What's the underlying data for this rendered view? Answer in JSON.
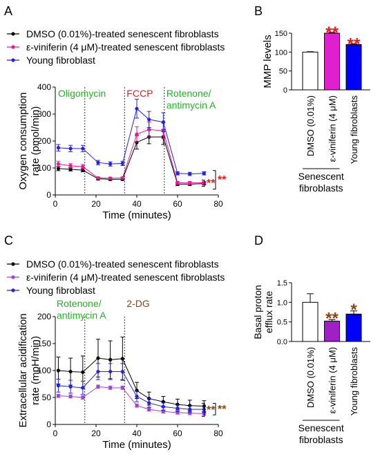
{
  "panels": {
    "a": "A",
    "b": "B",
    "c": "C",
    "d": "D"
  },
  "colors": {
    "dmso": "#000000",
    "vin_a": "#e8189a",
    "vin_c": "#a23fd6",
    "young": "#2222e0",
    "red": "#e8191b",
    "green": "#1db31d",
    "brown": "#8b4513"
  },
  "chart_data": [
    {
      "id": "A",
      "type": "line",
      "xlabel": "Time (minutes)",
      "ylabel": [
        "Oxygen consumption",
        "rate (pmol/min)"
      ],
      "xlim": [
        0,
        80
      ],
      "ylim": [
        0,
        400
      ],
      "xticks": [
        "0",
        "20",
        "40",
        "60",
        "80"
      ],
      "yticks": [
        "0",
        "100",
        "200",
        "300",
        "400"
      ],
      "x": [
        1.5,
        7.5,
        13.5,
        21,
        27,
        33,
        40,
        46,
        53,
        60,
        66,
        73
      ],
      "series": [
        {
          "name": "DMSO (0.01%)-treated senescent fibroblasts",
          "color": "#000000",
          "values": [
            98,
            95,
            92,
            60,
            58,
            58,
            195,
            215,
            215,
            40,
            40,
            42
          ],
          "err": [
            8,
            6,
            6,
            4,
            4,
            4,
            25,
            25,
            28,
            5,
            5,
            5
          ]
        },
        {
          "name": "ε-viniferin (4 μM)-treated senescent fibroblasts",
          "color": "#e8189a",
          "values": [
            115,
            108,
            105,
            63,
            62,
            63,
            225,
            243,
            238,
            45,
            45,
            45
          ],
          "err": [
            10,
            8,
            8,
            4,
            4,
            4,
            28,
            28,
            30,
            5,
            5,
            5
          ]
        },
        {
          "name": "Young fibroblast",
          "color": "#2222e0",
          "values": [
            175,
            172,
            172,
            120,
            115,
            117,
            320,
            280,
            270,
            80,
            78,
            80
          ],
          "err": [
            12,
            12,
            12,
            8,
            8,
            8,
            35,
            30,
            35,
            6,
            6,
            6
          ]
        }
      ],
      "injections": [
        {
          "label": "Oligomycin",
          "x": 14.5,
          "color": "#1db31d"
        },
        {
          "label": "FCCP",
          "x": 34,
          "color": "#e8191b"
        },
        {
          "label": "Rotenone/",
          "label2": "antimycin A",
          "x": 53.5,
          "color": "#1db31d"
        }
      ],
      "sig": [
        "**",
        "**"
      ]
    },
    {
      "id": "B",
      "type": "bar",
      "ylabel": "MMP levels",
      "ylim": [
        0,
        150
      ],
      "yticks": [
        "0",
        "50",
        "100",
        "150"
      ],
      "categories": [
        "DMSO (0.01%)",
        "ε-viniferin (4 μM)",
        "Young fibroblasts"
      ],
      "values": [
        100,
        150,
        120
      ],
      "err": [
        1,
        2,
        2
      ],
      "colors": [
        "#ffffff",
        "#e020d0",
        "#0000ff"
      ],
      "sig": [
        "",
        "**",
        "**"
      ],
      "group_label": [
        "Senescent",
        "fibroblasts"
      ]
    },
    {
      "id": "C",
      "type": "line",
      "xlabel": "Time (minutes)",
      "ylabel": [
        "Extracellular acidification",
        "rate (mpH/min)"
      ],
      "xlim": [
        0,
        80
      ],
      "ylim": [
        0,
        200
      ],
      "xticks": [
        "0",
        "20",
        "40",
        "60",
        "80"
      ],
      "yticks": [
        "0",
        "50",
        "100",
        "150",
        "200"
      ],
      "x": [
        1.5,
        7.5,
        13.5,
        21,
        27,
        33,
        40,
        46,
        53,
        60,
        66,
        73
      ],
      "series": [
        {
          "name": "DMSO (0.01%)-treated senescent fibroblasts",
          "color": "#000000",
          "values": [
            100,
            98,
            97,
            123,
            120,
            122,
            63,
            48,
            42,
            37,
            35,
            34
          ],
          "err": [
            25,
            25,
            30,
            35,
            35,
            40,
            15,
            12,
            10,
            10,
            10,
            10
          ]
        },
        {
          "name": "ε-viniferin (4 μM)-treated senescent fibroblasts",
          "color": "#a23fd6",
          "values": [
            53,
            52,
            50,
            70,
            68,
            68,
            35,
            28,
            24,
            22,
            21,
            20
          ],
          "err": [
            3,
            3,
            3,
            3,
            3,
            3,
            3,
            3,
            3,
            3,
            3,
            3
          ]
        },
        {
          "name": "Young fibroblast",
          "color": "#2222e0",
          "values": [
            72,
            70,
            68,
            98,
            98,
            98,
            52,
            40,
            33,
            30,
            28,
            28
          ],
          "err": [
            12,
            12,
            12,
            15,
            15,
            15,
            10,
            8,
            7,
            6,
            6,
            6
          ]
        }
      ],
      "injections": [
        {
          "label": "Rotenone/",
          "label2": "antimycin A",
          "x": 14.5,
          "color": "#1db31d"
        },
        {
          "label": "2-DG",
          "x": 34,
          "color": "#8b4513"
        }
      ],
      "sig": [
        "**",
        "**"
      ]
    },
    {
      "id": "D",
      "type": "bar",
      "ylabel": [
        "Basal proton",
        "efflux rate"
      ],
      "ylim": [
        0,
        1.5
      ],
      "yticks": [
        "0.0",
        "0.5",
        "1.0",
        "1.5"
      ],
      "categories": [
        "DMSO (0.01%)",
        "ε-viniferin (4 μM)",
        "Young fibroblasts"
      ],
      "values": [
        1.0,
        0.52,
        0.7
      ],
      "err": [
        0.22,
        0.04,
        0.08
      ],
      "colors": [
        "#ffffff",
        "#a020c8",
        "#0000ff"
      ],
      "sig": [
        "",
        "**",
        "*"
      ],
      "group_label": [
        "Senescent",
        "fibroblasts"
      ]
    }
  ]
}
